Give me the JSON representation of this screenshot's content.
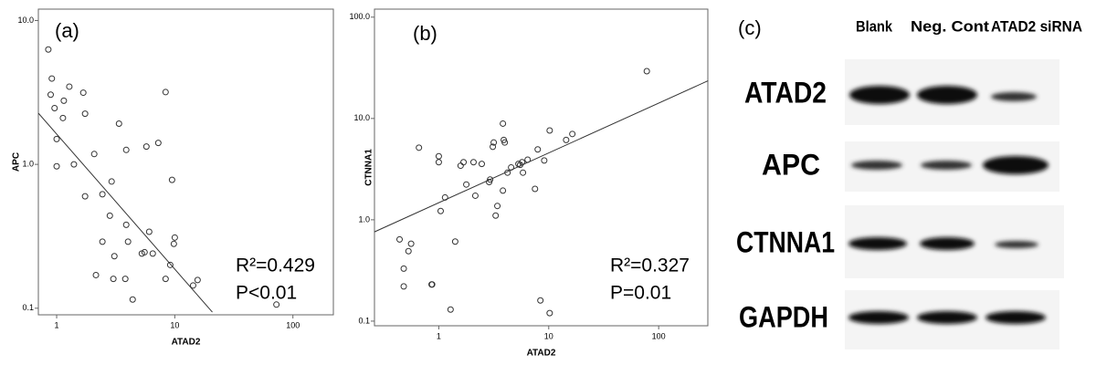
{
  "chart_data": [
    {
      "type": "scatter",
      "panel_label": "(a)",
      "x_label": "ATAD2",
      "y_label": "APC",
      "annotations": [
        "R²=0.429",
        "P<0.01"
      ],
      "log_x": true,
      "log_y": true,
      "marker_color": "#333333",
      "xlim": [
        0.7,
        220
      ],
      "ylim": [
        0.09,
        12
      ],
      "xticks": [
        1,
        10,
        100
      ],
      "yticks": [
        0.1,
        {
          "value": 1,
          "label": "1.0"
        },
        {
          "value": 10,
          "label": "10.0"
        }
      ],
      "x": [
        0.85,
        0.91,
        0.89,
        0.96,
        1.15,
        1.28,
        1.68,
        1.13,
        1.74,
        1.0,
        1.0,
        1.4,
        1.74,
        2.08,
        2.44,
        2.92,
        3.37,
        3.88,
        5.75,
        7.25,
        8.36,
        9.48,
        2.44,
        2.82,
        3.08,
        2.15,
        3.02,
        3.81,
        3.88,
        4.02,
        4.4,
        5.26,
        5.55,
        6.07,
        6.51,
        8.36,
        9.15,
        9.82,
        10.0,
        14.3,
        15.6,
        72.5
      ],
      "y": [
        6.29,
        3.95,
        3.05,
        2.46,
        2.77,
        3.47,
        3.15,
        2.1,
        2.25,
        1.5,
        0.97,
        1.0,
        0.6,
        1.18,
        0.62,
        0.76,
        1.92,
        1.26,
        1.33,
        1.41,
        3.18,
        0.78,
        0.29,
        0.44,
        0.23,
        0.17,
        0.16,
        0.16,
        0.38,
        0.29,
        0.115,
        0.24,
        0.245,
        0.34,
        0.24,
        0.16,
        0.2,
        0.28,
        0.31,
        0.144,
        0.157,
        0.106
      ],
      "trendline": {
        "x": [
          0.7,
          20.8
        ],
        "y": [
          2.27,
          0.094
        ]
      }
    },
    {
      "type": "scatter",
      "panel_label": "(b)",
      "x_label": "ATAD2",
      "y_label": "CTNNA1",
      "annotations": [
        "R²=0.327",
        "P=0.01"
      ],
      "log_x": true,
      "log_y": true,
      "marker_color": "#333333",
      "xlim": [
        0.26,
        280
      ],
      "ylim": [
        0.09,
        120
      ],
      "xticks": [
        1,
        10,
        100
      ],
      "yticks": [
        0.1,
        {
          "value": 1,
          "label": "1.0"
        },
        {
          "value": 10,
          "label": "10.0"
        },
        {
          "value": 100,
          "label": "100.0"
        }
      ],
      "x": [
        0.66,
        1.0,
        1.0,
        0.44,
        0.48,
        0.48,
        0.53,
        0.56,
        0.86,
        0.87,
        1.04,
        1.14,
        1.41,
        1.28,
        1.58,
        1.68,
        1.78,
        2.07,
        2.15,
        2.46,
        2.87,
        2.93,
        3.16,
        3.1,
        3.29,
        3.41,
        3.83,
        3.9,
        3.98,
        3.83,
        4.22,
        4.55,
        5.3,
        5.5,
        5.73,
        5.83,
        6.43,
        7.5,
        7.94,
        9.1,
        10.2,
        8.4,
        10.2,
        14.4,
        16.4,
        78
      ],
      "y": [
        5.15,
        4.24,
        3.7,
        0.64,
        0.33,
        0.22,
        0.49,
        0.58,
        0.23,
        0.23,
        1.22,
        1.66,
        0.61,
        0.13,
        3.42,
        3.7,
        2.23,
        3.7,
        1.73,
        3.56,
        2.36,
        2.5,
        5.79,
        5.25,
        1.1,
        1.37,
        8.9,
        6.14,
        5.79,
        1.94,
        2.92,
        3.29,
        3.56,
        3.49,
        3.7,
        2.92,
        3.92,
        2.02,
        4.95,
        3.85,
        7.61,
        0.16,
        0.12,
        6.14,
        7.03,
        29.3
      ],
      "trendline": {
        "x": [
          0.26,
          282
        ],
        "y": [
          0.76,
          23.6
        ]
      }
    }
  ],
  "blot": {
    "panel_label": "(c)",
    "columns": [
      "Blank",
      "Neg. Cont",
      "ATAD2 siRNA"
    ],
    "rows": [
      "ATAD2",
      "APC",
      "CTNNA1",
      "GAPDH"
    ]
  }
}
